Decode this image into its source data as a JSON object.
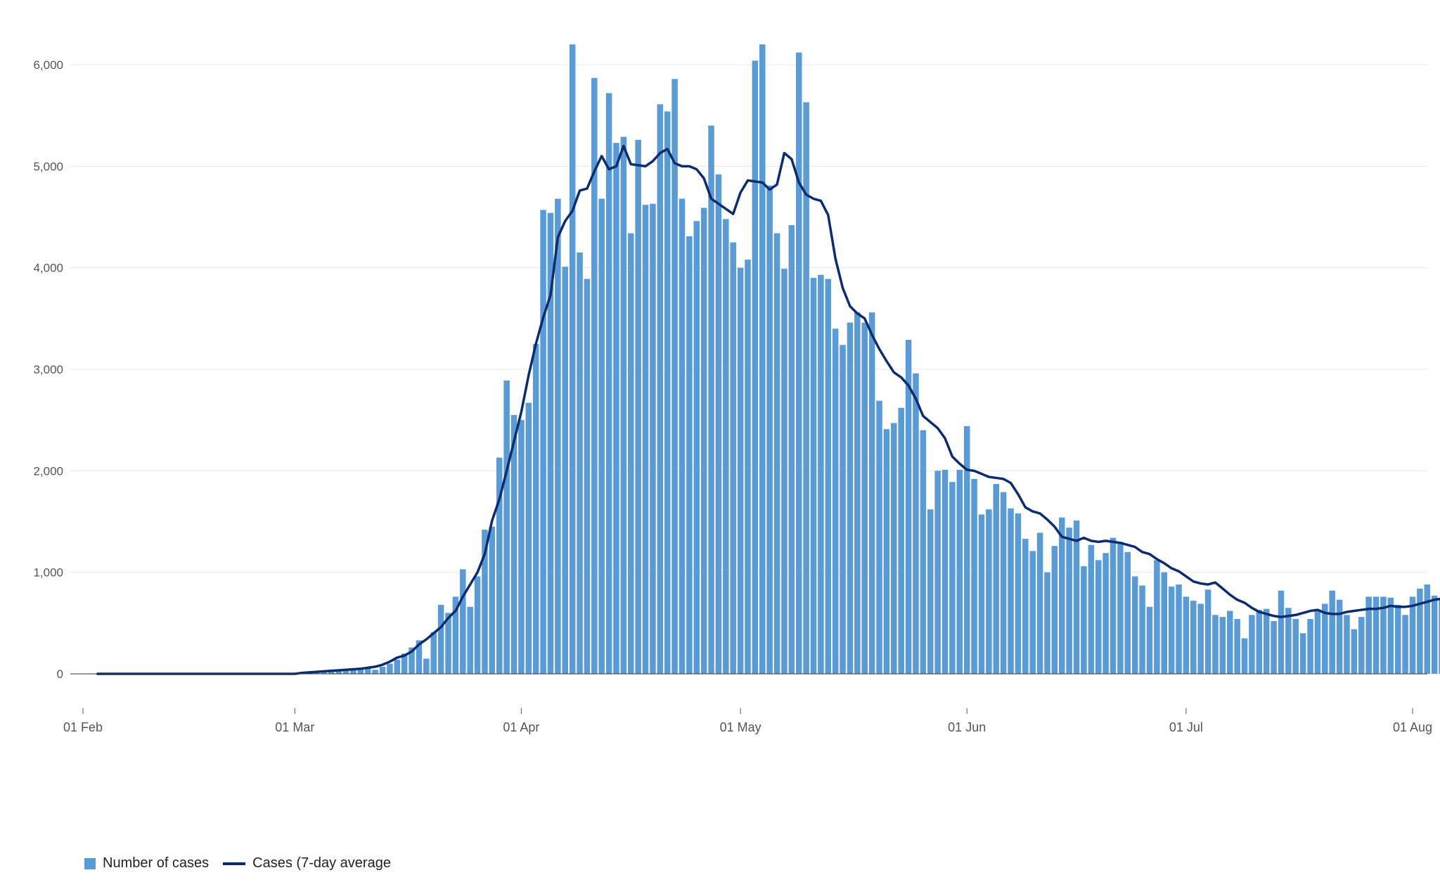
{
  "colors": {
    "bar": "#5b9bd5",
    "line": "#0b2c6e",
    "grid": "#e6e6e6",
    "axis": "#333333",
    "tick": "#555555"
  },
  "legend": {
    "bars": "Number of cases",
    "line": "Cases (7-day average"
  },
  "chart_data": {
    "type": "bar",
    "x_type": "date",
    "grid": true,
    "legend_position": "bottom-left",
    "ylim": [
      0,
      6300
    ],
    "y_ticks": [
      0,
      1000,
      2000,
      3000,
      4000,
      5000,
      6000
    ],
    "y_tick_labels": [
      "0",
      "1,000",
      "2,000",
      "3,000",
      "4,000",
      "5,000",
      "6,000"
    ],
    "x_ticks": [
      "2020-02-01",
      "2020-03-01",
      "2020-04-01",
      "2020-05-01",
      "2020-06-01",
      "2020-07-01",
      "2020-08-01"
    ],
    "x_tick_labels": [
      "01 Feb",
      "01 Mar",
      "01 Apr",
      "01 May",
      "01 Jun",
      "01 Jul",
      "01 Aug"
    ],
    "series": [
      {
        "name": "Number of cases",
        "type": "bar",
        "start_date": "2020-02-03",
        "values": [
          0,
          0,
          0,
          0,
          0,
          0,
          0,
          0,
          0,
          0,
          0,
          0,
          0,
          0,
          0,
          0,
          0,
          0,
          0,
          0,
          0,
          0,
          0,
          0,
          0,
          0,
          0,
          0,
          10,
          15,
          20,
          25,
          30,
          35,
          40,
          45,
          50,
          55,
          40,
          70,
          100,
          140,
          200,
          260,
          330,
          150,
          410,
          680,
          600,
          760,
          1030,
          660,
          960,
          1420,
          1450,
          2130,
          2890,
          2550,
          2500,
          2670,
          3250,
          4570,
          4540,
          4680,
          4010,
          6200,
          4150,
          3890,
          5870,
          4680,
          5720,
          5230,
          5290,
          4340,
          5260,
          4620,
          4630,
          5610,
          5540,
          5860,
          4680,
          4310,
          4460,
          4590,
          5400,
          4920,
          4480,
          4250,
          4000,
          4080,
          6040,
          6200,
          4810,
          4340,
          3990,
          4420,
          6120,
          5630,
          3900,
          3930,
          3890,
          3400,
          3240,
          3460,
          3560,
          3460,
          3560,
          2690,
          2410,
          2470,
          2620,
          3290,
          2960,
          2400,
          1620,
          2000,
          2010,
          1890,
          2010,
          2440,
          1920,
          1570,
          1620,
          1870,
          1790,
          1630,
          1580,
          1330,
          1210,
          1390,
          1000,
          1260,
          1540,
          1440,
          1510,
          1060,
          1270,
          1120,
          1190,
          1340,
          1300,
          1200,
          960,
          870,
          660,
          1120,
          1000,
          860,
          880,
          760,
          720,
          690,
          830,
          580,
          560,
          620,
          540,
          350,
          580,
          630,
          640,
          520,
          820,
          650,
          540,
          400,
          540,
          630,
          690,
          820,
          730,
          580,
          440,
          560,
          760,
          760,
          760,
          750,
          680,
          580,
          760,
          840,
          880,
          770,
          750
        ]
      },
      {
        "name": "Cases (7-day average",
        "type": "line",
        "start_date": "2020-02-03",
        "values": [
          0,
          0,
          0,
          0,
          0,
          0,
          0,
          0,
          0,
          0,
          0,
          0,
          0,
          0,
          0,
          0,
          0,
          0,
          0,
          0,
          0,
          0,
          0,
          0,
          0,
          0,
          0,
          0,
          10,
          15,
          20,
          25,
          30,
          35,
          40,
          45,
          50,
          60,
          70,
          90,
          120,
          160,
          180,
          220,
          290,
          340,
          400,
          460,
          550,
          620,
          760,
          880,
          1000,
          1180,
          1510,
          1720,
          2000,
          2290,
          2580,
          2940,
          3250,
          3510,
          3730,
          4300,
          4460,
          4560,
          4760,
          4780,
          4950,
          5100,
          4970,
          5000,
          5200,
          5020,
          5010,
          5000,
          5050,
          5130,
          5170,
          5030,
          5000,
          5000,
          4970,
          4880,
          4680,
          4630,
          4580,
          4530,
          4740,
          4860,
          4850,
          4840,
          4770,
          4820,
          5130,
          5070,
          4840,
          4720,
          4680,
          4660,
          4520,
          4090,
          3800,
          3620,
          3550,
          3500,
          3340,
          3200,
          3080,
          2970,
          2920,
          2840,
          2710,
          2540,
          2480,
          2420,
          2320,
          2140,
          2070,
          2010,
          2000,
          1970,
          1940,
          1930,
          1920,
          1880,
          1770,
          1640,
          1600,
          1580,
          1520,
          1450,
          1350,
          1330,
          1310,
          1340,
          1310,
          1300,
          1310,
          1300,
          1290,
          1270,
          1250,
          1200,
          1180,
          1130,
          1090,
          1040,
          1010,
          960,
          910,
          890,
          880,
          900,
          840,
          780,
          730,
          700,
          650,
          610,
          590,
          570,
          560,
          570,
          580,
          600,
          620,
          630,
          600,
          590,
          590,
          610,
          620,
          630,
          640,
          640,
          650,
          670,
          660,
          660,
          670,
          690,
          710,
          730,
          740,
          760,
          760,
          760
        ]
      }
    ]
  }
}
